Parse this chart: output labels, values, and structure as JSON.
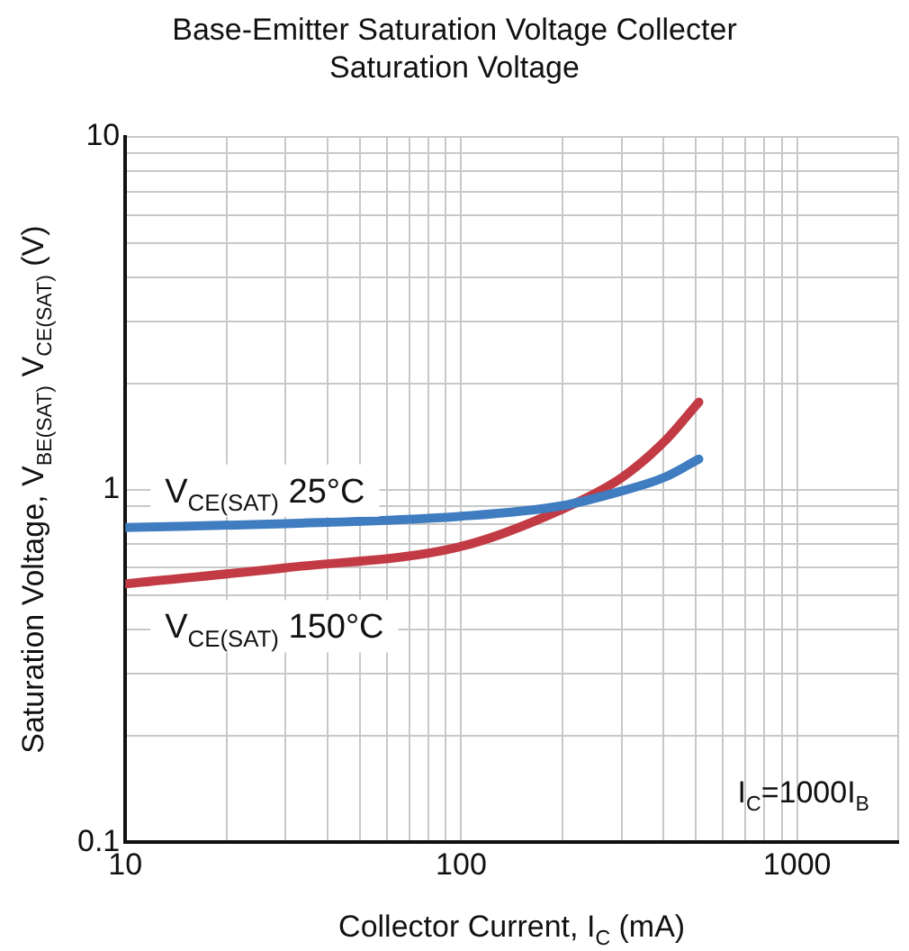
{
  "chart_data": {
    "type": "line",
    "title": "Base-Emitter Saturation Voltage Collecter Saturation Voltage",
    "xlabel": "Collector Current, I$_{C}$ (mA)",
    "ylabel": "Saturation Voltage, V$_{BE(SAT)}$ V$_{CE(SAT)}$ (V)",
    "log": "xy",
    "grid": true,
    "legend": false,
    "marker": "none",
    "line_style": "solid",
    "x": [
      10,
      30,
      100,
      200,
      300,
      400,
      510
    ],
    "series": [
      {
        "name": "V$_{CE(SAT)}$ 25°C",
        "color": "#3f7cc0",
        "values": [
          0.78,
          0.8,
          0.84,
          0.9,
          0.99,
          1.08,
          1.22
        ]
      },
      {
        "name": "V$_{CE(SAT)}$ 150°C",
        "color": "#c23b44",
        "values": [
          0.54,
          0.6,
          0.69,
          0.88,
          1.08,
          1.36,
          1.77
        ]
      }
    ],
    "xlim": [
      10,
      2000
    ],
    "xticks": [
      10,
      {
        "value": 20,
        "label": null
      },
      {
        "value": 30,
        "label": null
      },
      {
        "value": 40,
        "label": null
      },
      {
        "value": 50,
        "label": null
      },
      {
        "value": 60,
        "label": null
      },
      {
        "value": 70,
        "label": null
      },
      {
        "value": 80,
        "label": null
      },
      {
        "value": 90,
        "label": null
      },
      100,
      {
        "value": 200,
        "label": null
      },
      {
        "value": 300,
        "label": null
      },
      {
        "value": 400,
        "label": null
      },
      {
        "value": 500,
        "label": null
      },
      {
        "value": 600,
        "label": null
      },
      {
        "value": 700,
        "label": null
      },
      {
        "value": 800,
        "label": null
      },
      {
        "value": 900,
        "label": null
      },
      1000,
      {
        "value": 2000,
        "label": null
      }
    ],
    "ylim": [
      0.1,
      10
    ],
    "yticks": [
      0.1,
      {
        "value": 0.2,
        "label": null
      },
      {
        "value": 0.3,
        "label": null
      },
      {
        "value": 0.4,
        "label": null
      },
      {
        "value": 0.5,
        "label": null
      },
      {
        "value": 0.6,
        "label": null
      },
      {
        "value": 0.7,
        "label": null
      },
      {
        "value": 0.8,
        "label": null
      },
      {
        "value": 0.9,
        "label": null
      },
      1,
      {
        "value": 2,
        "label": null
      },
      {
        "value": 3,
        "label": null
      },
      {
        "value": 4,
        "label": null
      },
      {
        "value": 5,
        "label": null
      },
      {
        "value": 6,
        "label": null
      },
      {
        "value": 7,
        "label": null
      },
      {
        "value": 8,
        "label": null
      },
      {
        "value": 9,
        "label": null
      },
      10
    ],
    "annotations": [
      "I$_{C}$=1000I$_{B}$"
    ]
  }
}
